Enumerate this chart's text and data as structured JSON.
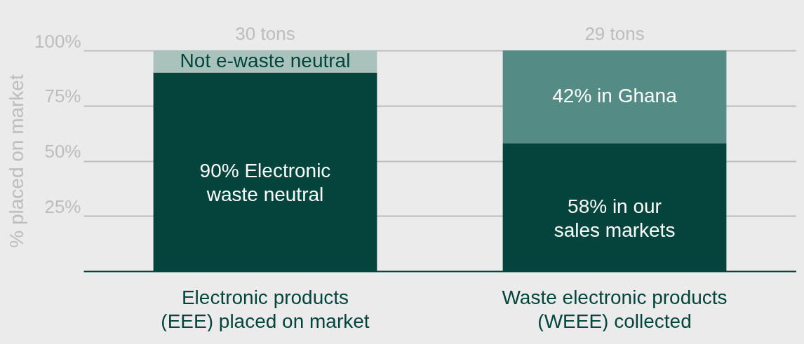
{
  "chart_data": {
    "type": "bar",
    "stacked": true,
    "ylabel": "% placed on market",
    "categories": [
      "Electronic products (EEE) placed on market",
      "Waste electronic products (WEEE) collected"
    ],
    "series": [
      {
        "colors": [
          "#03443c",
          "#03443c"
        ],
        "values": [
          90,
          58
        ],
        "value_labels": [
          "90% Electronic waste neutral",
          "58% in our sales markets"
        ]
      },
      {
        "colors": [
          "#a9c2bc",
          "#548c85"
        ],
        "values": [
          10,
          42
        ],
        "value_labels": [
          "Not e-waste neutral",
          "42% in Ghana"
        ]
      }
    ],
    "annotations": [
      {
        "text": "30 tons",
        "x": "Electronic products (EEE) placed on market",
        "y": 100
      },
      {
        "text": "29 tons",
        "x": "Waste electronic products (WEEE) collected",
        "y": 100
      }
    ],
    "ylim": [
      0,
      100
    ],
    "yticks": [
      {
        "value": 25,
        "label": "25%"
      },
      {
        "value": 50,
        "label": "50%"
      },
      {
        "value": 75,
        "label": "75%"
      },
      {
        "value": 100,
        "label": "100%"
      }
    ],
    "grid": "y"
  }
}
